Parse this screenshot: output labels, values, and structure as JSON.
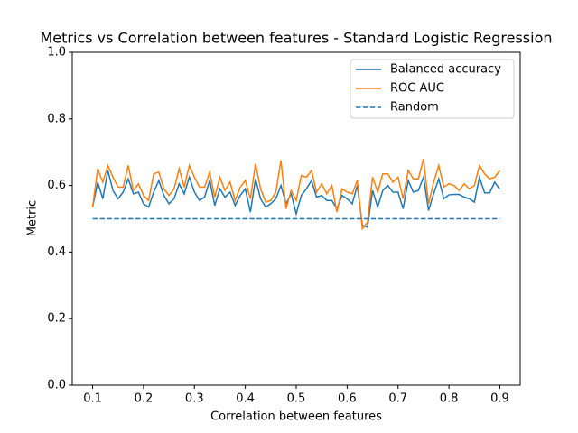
{
  "chart_data": {
    "type": "line",
    "title": "Metrics vs Correlation between features - Standard Logistic Regression",
    "xlabel": "Correlation between features",
    "ylabel": "Metric",
    "x": [
      0.1,
      0.11,
      0.12,
      0.13,
      0.14,
      0.15,
      0.16,
      0.17,
      0.18,
      0.19,
      0.2,
      0.21,
      0.22,
      0.23,
      0.24,
      0.25,
      0.26,
      0.27,
      0.28,
      0.29,
      0.3,
      0.31,
      0.32,
      0.33,
      0.34,
      0.35,
      0.36,
      0.37,
      0.38,
      0.39,
      0.4,
      0.41,
      0.42,
      0.43,
      0.44,
      0.45,
      0.46,
      0.47,
      0.48,
      0.49,
      0.5,
      0.51,
      0.52,
      0.53,
      0.54,
      0.55,
      0.56,
      0.57,
      0.58,
      0.59,
      0.6,
      0.61,
      0.62,
      0.63,
      0.64,
      0.65,
      0.66,
      0.67,
      0.68,
      0.69,
      0.7,
      0.71,
      0.72,
      0.73,
      0.74,
      0.75,
      0.76,
      0.77,
      0.78,
      0.79,
      0.8,
      0.81,
      0.82,
      0.83,
      0.84,
      0.85,
      0.86,
      0.87,
      0.88,
      0.89,
      0.9
    ],
    "series": [
      {
        "name": "Balanced accuracy",
        "color": "#1f77b4",
        "dashed": false,
        "values": [
          0.535,
          0.61,
          0.56,
          0.645,
          0.585,
          0.56,
          0.58,
          0.62,
          0.575,
          0.58,
          0.545,
          0.535,
          0.58,
          0.615,
          0.57,
          0.545,
          0.56,
          0.605,
          0.575,
          0.625,
          0.58,
          0.555,
          0.565,
          0.615,
          0.54,
          0.59,
          0.565,
          0.58,
          0.54,
          0.57,
          0.59,
          0.52,
          0.62,
          0.56,
          0.535,
          0.545,
          0.56,
          0.6,
          0.545,
          0.575,
          0.515,
          0.57,
          0.59,
          0.615,
          0.565,
          0.57,
          0.555,
          0.555,
          0.53,
          0.57,
          0.56,
          0.545,
          0.6,
          0.48,
          0.475,
          0.585,
          0.535,
          0.585,
          0.6,
          0.58,
          0.58,
          0.53,
          0.615,
          0.58,
          0.585,
          0.625,
          0.525,
          0.575,
          0.62,
          0.56,
          0.572,
          0.573,
          0.573,
          0.565,
          0.56,
          0.55,
          0.625,
          0.578,
          0.578,
          0.61,
          0.588
        ]
      },
      {
        "name": "ROC AUC",
        "color": "#ff7f0e",
        "dashed": false,
        "values": [
          0.535,
          0.65,
          0.61,
          0.66,
          0.625,
          0.595,
          0.595,
          0.66,
          0.585,
          0.605,
          0.57,
          0.555,
          0.635,
          0.64,
          0.59,
          0.57,
          0.59,
          0.65,
          0.595,
          0.66,
          0.625,
          0.595,
          0.595,
          0.64,
          0.565,
          0.625,
          0.585,
          0.61,
          0.555,
          0.595,
          0.615,
          0.56,
          0.665,
          0.59,
          0.55,
          0.555,
          0.58,
          0.675,
          0.53,
          0.585,
          0.555,
          0.63,
          0.625,
          0.645,
          0.58,
          0.605,
          0.575,
          0.6,
          0.52,
          0.59,
          0.58,
          0.575,
          0.615,
          0.47,
          0.49,
          0.625,
          0.58,
          0.635,
          0.635,
          0.61,
          0.625,
          0.56,
          0.645,
          0.62,
          0.62,
          0.68,
          0.545,
          0.61,
          0.66,
          0.595,
          0.605,
          0.6,
          0.585,
          0.605,
          0.59,
          0.6,
          0.66,
          0.635,
          0.62,
          0.625,
          0.645
        ]
      },
      {
        "name": "Random",
        "color": "#1f77b4",
        "dashed": true,
        "values": [
          0.5,
          0.5,
          0.5,
          0.5,
          0.5,
          0.5,
          0.5,
          0.5,
          0.5,
          0.5,
          0.5,
          0.5,
          0.5,
          0.5,
          0.5,
          0.5,
          0.5,
          0.5,
          0.5,
          0.5,
          0.5,
          0.5,
          0.5,
          0.5,
          0.5,
          0.5,
          0.5,
          0.5,
          0.5,
          0.5,
          0.5,
          0.5,
          0.5,
          0.5,
          0.5,
          0.5,
          0.5,
          0.5,
          0.5,
          0.5,
          0.5,
          0.5,
          0.5,
          0.5,
          0.5,
          0.5,
          0.5,
          0.5,
          0.5,
          0.5,
          0.5,
          0.5,
          0.5,
          0.5,
          0.5,
          0.5,
          0.5,
          0.5,
          0.5,
          0.5,
          0.5,
          0.5,
          0.5,
          0.5,
          0.5,
          0.5,
          0.5,
          0.5,
          0.5,
          0.5,
          0.5,
          0.5,
          0.5,
          0.5,
          0.5,
          0.5,
          0.5,
          0.5,
          0.5,
          0.5,
          0.5
        ]
      }
    ],
    "xlim": [
      0.06,
      0.94
    ],
    "xticks": [
      0.1,
      0.2,
      0.3,
      0.4,
      0.5,
      0.6,
      0.7,
      0.8,
      0.9
    ],
    "ylim": [
      0,
      1
    ],
    "yticks": [
      {
        "value": 0,
        "label": "0.0"
      },
      0.2,
      0.4,
      0.6,
      0.8,
      {
        "value": 1,
        "label": "1.0"
      }
    ],
    "grid": false,
    "legend": "upper right"
  }
}
